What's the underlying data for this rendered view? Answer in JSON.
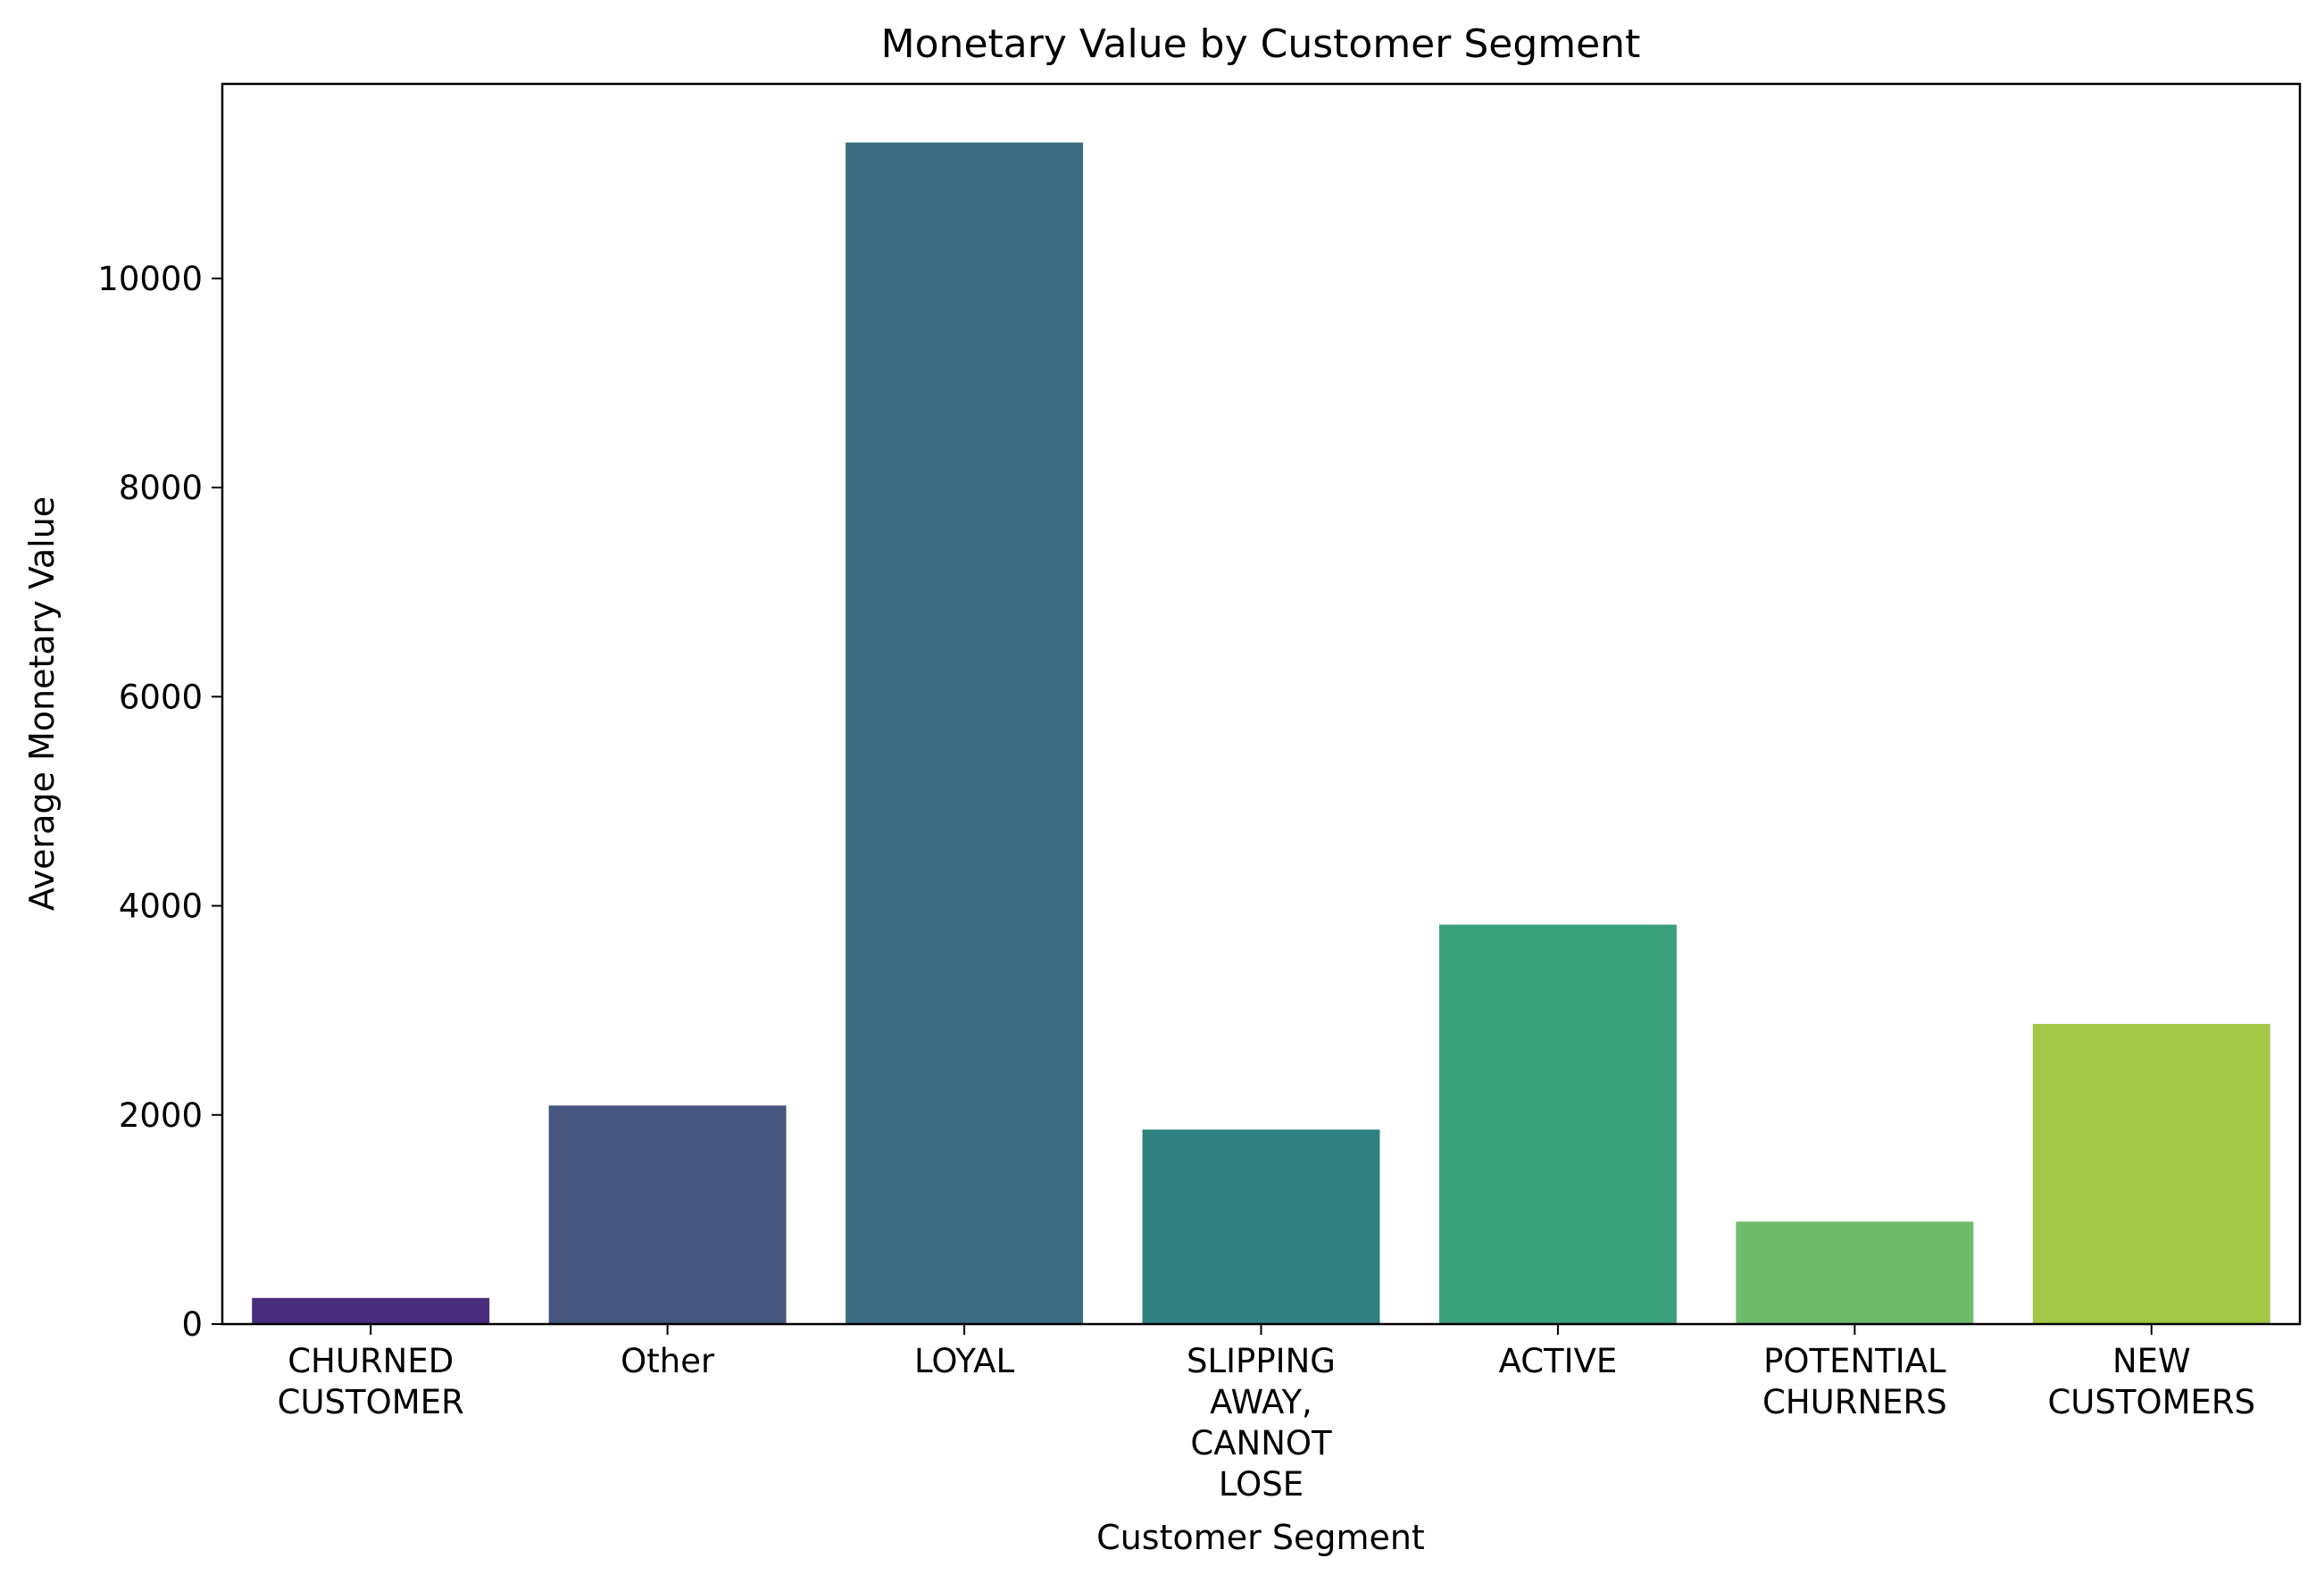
{
  "chart_data": {
    "type": "bar",
    "title": "Monetary Value by Customer Segment",
    "xlabel": "Customer Segment",
    "ylabel": "Average Monetary Value",
    "categories": [
      "CHURNED\nCUSTOMER",
      "Other",
      "LOYAL",
      "SLIPPING\nAWAY,\nCANNOT\nLOSE",
      "ACTIVE",
      "POTENTIAL\nCHURNERS",
      "NEW\nCUSTOMERS"
    ],
    "values": [
      250,
      2090,
      11300,
      1860,
      3820,
      980,
      2870
    ],
    "colors": [
      "#472d7b",
      "#46577f",
      "#3a6e80",
      "#2d8280",
      "#3ba07c",
      "#6ebc6a",
      "#a2c646"
    ],
    "ylim": [
      0,
      11860
    ],
    "yticks": [
      0,
      2000,
      4000,
      6000,
      8000,
      10000
    ],
    "grid": false,
    "legend": "none"
  }
}
